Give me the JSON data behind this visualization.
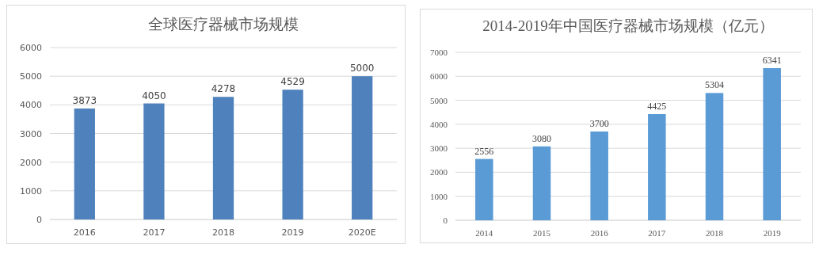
{
  "chart_data": [
    {
      "type": "bar",
      "title": "全球医疗器械市场规模",
      "categories": [
        "2016",
        "2017",
        "2018",
        "2019",
        "2020E"
      ],
      "values": [
        3873,
        4050,
        4278,
        4529,
        5000
      ],
      "color": "#4f81bd",
      "ylim": [
        0,
        6000
      ],
      "yticks": [
        0,
        1000,
        2000,
        3000,
        4000,
        5000,
        6000
      ],
      "grid": "y",
      "data_labels": true
    },
    {
      "type": "bar",
      "title": "2014-2019年中国医疗器械市场规模（亿元）",
      "categories": [
        "2014",
        "2015",
        "2016",
        "2017",
        "2018",
        "2019"
      ],
      "values": [
        2556,
        3080,
        3700,
        4425,
        5304,
        6341
      ],
      "color": "#5b9bd5",
      "ylim": [
        0,
        7000
      ],
      "yticks": [
        0,
        1000,
        2000,
        3000,
        4000,
        5000,
        6000,
        7000
      ],
      "grid": "y",
      "data_labels": true
    }
  ]
}
